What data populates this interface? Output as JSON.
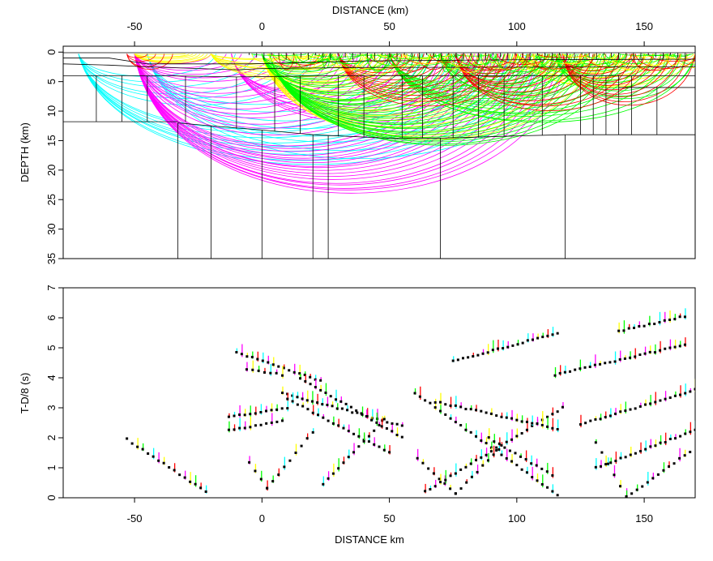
{
  "chart_data": [
    {
      "type": "ray-diagram",
      "xlabel": "DISTANCE (km)",
      "ylabel": "DEPTH (km)",
      "xlim": [
        -78,
        170
      ],
      "ylim": [
        35,
        -1
      ],
      "xticks": [
        -50,
        0,
        50,
        100,
        150
      ],
      "yticks": [
        0,
        5,
        10,
        15,
        20,
        25,
        30,
        35
      ],
      "x_axis_position": "top",
      "ray_colors": [
        "#00ffff",
        "#ff00ff",
        "#ffff00",
        "#00ff00",
        "#ff0000"
      ],
      "layer_depths": [
        0,
        1.0,
        2.0,
        4.0,
        11.8,
        14.0,
        35.0
      ],
      "interface_depths": [
        1.0,
        2.0,
        4.0
      ],
      "boundary_x": [
        -33,
        -20,
        0,
        20,
        26,
        70,
        119,
        140
      ]
    },
    {
      "type": "scatter",
      "xlabel": "DISTANCE  km",
      "ylabel": "T-D/8 (s)",
      "xlim": [
        -78,
        170
      ],
      "ylim": [
        0,
        7
      ],
      "xticks": [
        -50,
        0,
        50,
        100,
        150
      ],
      "yticks": [
        0,
        1,
        2,
        3,
        4,
        5,
        6,
        7
      ],
      "series": [
        {
          "branch": "direct-left",
          "x": [
            -53,
            -22
          ],
          "y": [
            1.95,
            0.2
          ]
        },
        {
          "branch": "direct-center-left",
          "x": [
            -5,
            2
          ],
          "y": [
            1.2,
            0.3
          ]
        },
        {
          "branch": "direct-center-right",
          "x": [
            2,
            20
          ],
          "y": [
            0.3,
            2.2
          ]
        },
        {
          "branch": "refl-1",
          "x": [
            -13,
            8
          ],
          "y": [
            2.25,
            2.55
          ]
        },
        {
          "branch": "refl-2",
          "x": [
            -13,
            10
          ],
          "y": [
            2.7,
            3.0
          ]
        },
        {
          "branch": "refl-3",
          "x": [
            -10,
            23
          ],
          "y": [
            4.85,
            3.9
          ]
        },
        {
          "branch": "refl-4",
          "x": [
            -6,
            8
          ],
          "y": [
            4.3,
            4.1
          ]
        },
        {
          "branch": "left-down-1",
          "x": [
            8,
            55
          ],
          "y": [
            3.5,
            2.4
          ]
        },
        {
          "branch": "left-down-2",
          "x": [
            15,
            55
          ],
          "y": [
            4.0,
            2.0
          ]
        },
        {
          "branch": "mid-down",
          "x": [
            10,
            50
          ],
          "y": [
            3.3,
            1.5
          ]
        },
        {
          "branch": "mid-up-left",
          "x": [
            24,
            48
          ],
          "y": [
            0.45,
            2.6
          ]
        },
        {
          "branch": "center-left",
          "x": [
            61,
            76
          ],
          "y": [
            1.3,
            0.15
          ]
        },
        {
          "branch": "center-right",
          "x": [
            76,
            93
          ],
          "y": [
            0.15,
            1.6
          ]
        },
        {
          "branch": "center-x-down",
          "x": [
            60,
            116
          ],
          "y": [
            3.5,
            0.1
          ]
        },
        {
          "branch": "center-x-up",
          "x": [
            64,
            118
          ],
          "y": [
            0.2,
            3.0
          ]
        },
        {
          "branch": "right-grow",
          "x": [
            75,
            116
          ],
          "y": [
            4.55,
            5.5
          ]
        },
        {
          "branch": "right-mid",
          "x": [
            68,
            116
          ],
          "y": [
            3.2,
            2.3
          ]
        },
        {
          "branch": "right-low",
          "x": [
            89,
            114
          ],
          "y": [
            2.0,
            0.75
          ]
        },
        {
          "branch": "far-1",
          "x": [
            115,
            166
          ],
          "y": [
            4.1,
            5.1
          ]
        },
        {
          "branch": "far-2",
          "x": [
            125,
            170
          ],
          "y": [
            2.45,
            3.6
          ]
        },
        {
          "branch": "far-3",
          "x": [
            131,
            170
          ],
          "y": [
            1.0,
            2.25
          ]
        },
        {
          "branch": "far-4",
          "x": [
            143,
            168
          ],
          "y": [
            0.0,
            1.55
          ]
        },
        {
          "branch": "far-5",
          "x": [
            140,
            166
          ],
          "y": [
            5.55,
            6.05
          ]
        },
        {
          "branch": "far-6",
          "x": [
            131,
            143
          ],
          "y": [
            1.85,
            0.05
          ]
        }
      ]
    }
  ]
}
